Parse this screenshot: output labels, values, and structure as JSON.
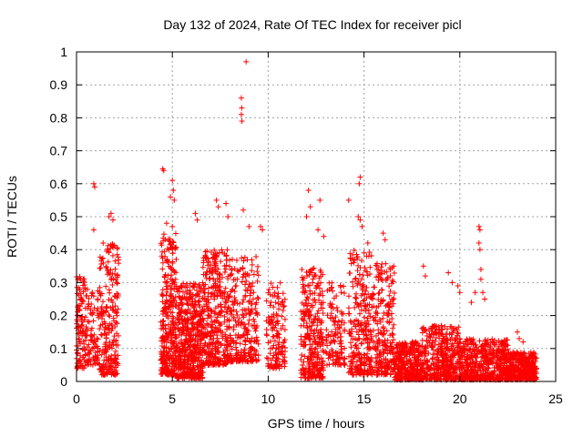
{
  "chart_data": {
    "type": "scatter",
    "title": "Day 132 of 2024, Rate Of TEC Index for receiver picl",
    "xlabel": "GPS time / hours",
    "ylabel": "ROTI / TECUs",
    "xlim": [
      0,
      25
    ],
    "ylim": [
      0,
      1
    ],
    "x_ticks": [
      0,
      5,
      10,
      15,
      20,
      25
    ],
    "y_ticks": [
      0,
      0.1,
      0.2,
      0.3,
      0.4,
      0.5,
      0.6,
      0.7,
      0.8,
      0.9,
      1
    ],
    "grid": true,
    "marker": "+",
    "color": "#ff0000",
    "clusters": [
      {
        "x": [
          0.0,
          0.5
        ],
        "y": [
          0.04,
          0.32
        ],
        "n": 120
      },
      {
        "x": [
          0.5,
          1.2
        ],
        "y": [
          0.05,
          0.28
        ],
        "n": 90
      },
      {
        "x": [
          1.2,
          2.2
        ],
        "y": [
          0.02,
          0.42
        ],
        "n": 240
      },
      {
        "x": [
          4.4,
          5.2
        ],
        "y": [
          0.02,
          0.45
        ],
        "n": 320
      },
      {
        "x": [
          5.2,
          6.6
        ],
        "y": [
          0.01,
          0.3
        ],
        "n": 520
      },
      {
        "x": [
          6.6,
          8.0
        ],
        "y": [
          0.05,
          0.4
        ],
        "n": 380
      },
      {
        "x": [
          8.0,
          9.5
        ],
        "y": [
          0.06,
          0.38
        ],
        "n": 260
      },
      {
        "x": [
          9.9,
          10.9
        ],
        "y": [
          0.04,
          0.3
        ],
        "n": 140
      },
      {
        "x": [
          11.7,
          12.9
        ],
        "y": [
          0.01,
          0.35
        ],
        "n": 300
      },
      {
        "x": [
          13.0,
          14.0
        ],
        "y": [
          0.05,
          0.3
        ],
        "n": 120
      },
      {
        "x": [
          14.2,
          15.4
        ],
        "y": [
          0.02,
          0.4
        ],
        "n": 260
      },
      {
        "x": [
          15.4,
          16.6
        ],
        "y": [
          0.02,
          0.36
        ],
        "n": 240
      },
      {
        "x": [
          16.6,
          18.0
        ],
        "y": [
          0.005,
          0.12
        ],
        "n": 340
      },
      {
        "x": [
          18.0,
          20.0
        ],
        "y": [
          0.005,
          0.17
        ],
        "n": 420
      },
      {
        "x": [
          20.0,
          22.5
        ],
        "y": [
          0.005,
          0.13
        ],
        "n": 520
      },
      {
        "x": [
          22.5,
          24.0
        ],
        "y": [
          0.005,
          0.09
        ],
        "n": 360
      }
    ],
    "points": [
      {
        "x": 0.9,
        "y": 0.6
      },
      {
        "x": 0.95,
        "y": 0.59
      },
      {
        "x": 0.9,
        "y": 0.46
      },
      {
        "x": 1.7,
        "y": 0.5
      },
      {
        "x": 1.8,
        "y": 0.51
      },
      {
        "x": 1.9,
        "y": 0.49
      },
      {
        "x": 4.5,
        "y": 0.645
      },
      {
        "x": 4.55,
        "y": 0.64
      },
      {
        "x": 5.0,
        "y": 0.61
      },
      {
        "x": 5.05,
        "y": 0.58
      },
      {
        "x": 4.9,
        "y": 0.56
      },
      {
        "x": 5.1,
        "y": 0.55
      },
      {
        "x": 4.7,
        "y": 0.48
      },
      {
        "x": 5.0,
        "y": 0.47
      },
      {
        "x": 6.2,
        "y": 0.51
      },
      {
        "x": 6.3,
        "y": 0.49
      },
      {
        "x": 7.3,
        "y": 0.55
      },
      {
        "x": 7.4,
        "y": 0.53
      },
      {
        "x": 7.8,
        "y": 0.54
      },
      {
        "x": 7.9,
        "y": 0.5
      },
      {
        "x": 8.85,
        "y": 0.97
      },
      {
        "x": 8.6,
        "y": 0.86
      },
      {
        "x": 8.62,
        "y": 0.83
      },
      {
        "x": 8.6,
        "y": 0.81
      },
      {
        "x": 8.63,
        "y": 0.79
      },
      {
        "x": 8.7,
        "y": 0.52
      },
      {
        "x": 9.0,
        "y": 0.47
      },
      {
        "x": 9.6,
        "y": 0.47
      },
      {
        "x": 9.7,
        "y": 0.46
      },
      {
        "x": 12.1,
        "y": 0.58
      },
      {
        "x": 12.2,
        "y": 0.53
      },
      {
        "x": 12.0,
        "y": 0.5
      },
      {
        "x": 12.7,
        "y": 0.55
      },
      {
        "x": 12.6,
        "y": 0.46
      },
      {
        "x": 12.9,
        "y": 0.44
      },
      {
        "x": 14.2,
        "y": 0.55
      },
      {
        "x": 14.8,
        "y": 0.62
      },
      {
        "x": 14.75,
        "y": 0.6
      },
      {
        "x": 14.7,
        "y": 0.5
      },
      {
        "x": 14.8,
        "y": 0.49
      },
      {
        "x": 14.9,
        "y": 0.47
      },
      {
        "x": 15.2,
        "y": 0.42
      },
      {
        "x": 16.0,
        "y": 0.45
      },
      {
        "x": 16.1,
        "y": 0.43
      },
      {
        "x": 18.1,
        "y": 0.35
      },
      {
        "x": 18.2,
        "y": 0.32
      },
      {
        "x": 19.4,
        "y": 0.33
      },
      {
        "x": 19.6,
        "y": 0.3
      },
      {
        "x": 19.9,
        "y": 0.29
      },
      {
        "x": 20.0,
        "y": 0.27
      },
      {
        "x": 20.6,
        "y": 0.24
      },
      {
        "x": 20.8,
        "y": 0.27
      },
      {
        "x": 21.0,
        "y": 0.47
      },
      {
        "x": 21.05,
        "y": 0.46
      },
      {
        "x": 21.0,
        "y": 0.42
      },
      {
        "x": 21.05,
        "y": 0.4
      },
      {
        "x": 21.1,
        "y": 0.34
      },
      {
        "x": 21.1,
        "y": 0.31
      },
      {
        "x": 21.2,
        "y": 0.27
      },
      {
        "x": 21.3,
        "y": 0.25
      },
      {
        "x": 23.0,
        "y": 0.15
      },
      {
        "x": 23.1,
        "y": 0.13
      },
      {
        "x": 23.3,
        "y": 0.12
      }
    ]
  }
}
